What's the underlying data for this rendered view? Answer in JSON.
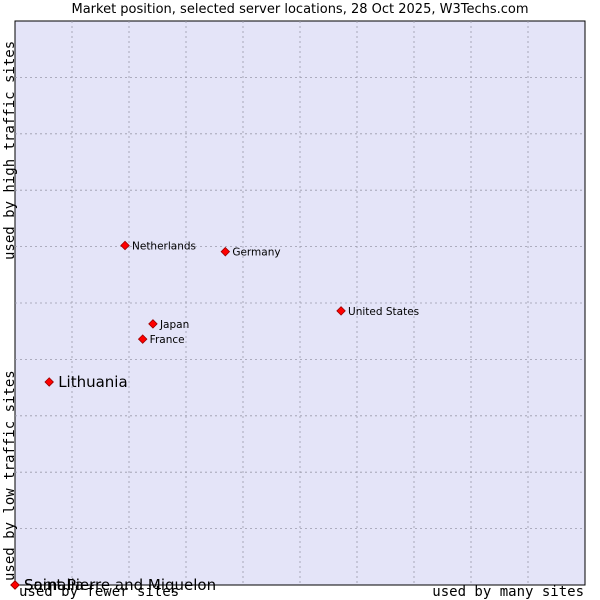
{
  "chart_data": {
    "type": "scatter",
    "title": "Market position, selected server locations, 28 Oct 2025, W3Techs.com",
    "x_axis": {
      "label_low": "used by fewer sites",
      "label_high": "used by many sites",
      "range": [
        0,
        100
      ]
    },
    "y_axis": {
      "label_low": "used by low traffic sites",
      "label_high": "used by high traffic sites",
      "range": [
        0,
        100
      ]
    },
    "grid": true,
    "points": [
      {
        "name": "Netherlands",
        "x": 19.3,
        "y": 60.2,
        "highlight": false
      },
      {
        "name": "Germany",
        "x": 36.9,
        "y": 59.1,
        "highlight": false
      },
      {
        "name": "United States",
        "x": 57.2,
        "y": 48.6,
        "highlight": false
      },
      {
        "name": "Japan",
        "x": 24.2,
        "y": 46.3,
        "highlight": false
      },
      {
        "name": "France",
        "x": 22.4,
        "y": 43.6,
        "highlight": false
      },
      {
        "name": "Lithuania",
        "x": 6.0,
        "y": 36.0,
        "highlight": true
      },
      {
        "name": "Saint Pierre and Miquelon",
        "x": 0.0,
        "y": 0.0,
        "highlight": true
      },
      {
        "name": "Somalia",
        "x": 0.0,
        "y": 0.0,
        "highlight": true
      }
    ]
  },
  "colors": {
    "plot_bg": "#e4e4f8",
    "grid": "#9a9aaa",
    "marker": "#ff0000",
    "marker_stroke": "#990000"
  }
}
